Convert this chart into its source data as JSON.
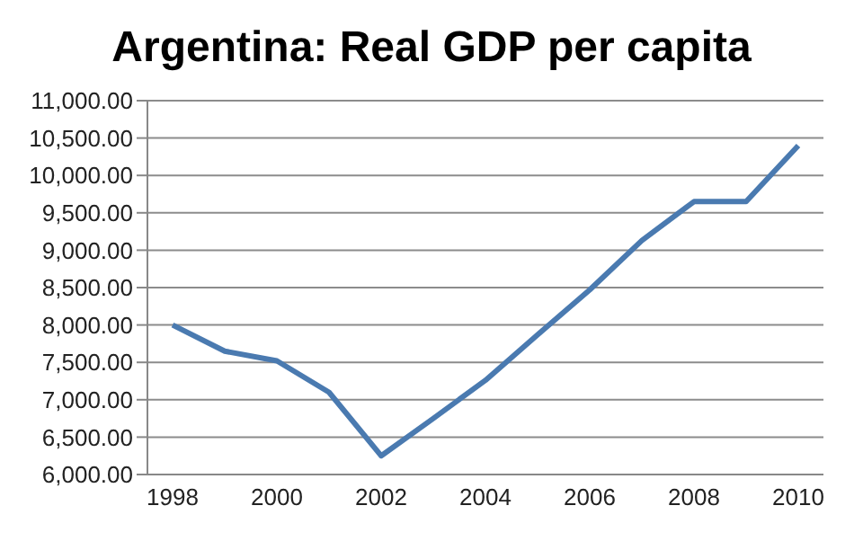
{
  "chart_data": {
    "type": "line",
    "title": "Argentina: Real GDP per capita",
    "categories": [
      "1998",
      null,
      "2000",
      null,
      "2002",
      null,
      "2004",
      null,
      "2006",
      null,
      "2008",
      null,
      "2010"
    ],
    "series": [
      {
        "color": "#4a7ab0",
        "values": [
          8000,
          7650,
          7520,
          7100,
          6250,
          6750,
          7260,
          7870,
          8470,
          9130,
          9650,
          9650,
          10400
        ]
      }
    ],
    "ylim": [
      6000,
      11000
    ],
    "yticks": [
      {
        "value": 6000,
        "label": "6,000.00"
      },
      {
        "value": 6500,
        "label": "6,500.00"
      },
      {
        "value": 7000,
        "label": "7,000.00"
      },
      {
        "value": 7500,
        "label": "7,500.00"
      },
      {
        "value": 8000,
        "label": "8,000.00"
      },
      {
        "value": 8500,
        "label": "8,500.00"
      },
      {
        "value": 9000,
        "label": "9,000.00"
      },
      {
        "value": 9500,
        "label": "9,500.00"
      },
      {
        "value": 10000,
        "label": "10,000.00"
      },
      {
        "value": 10500,
        "label": "10,500.00"
      },
      {
        "value": 11000,
        "label": "11,000.00"
      }
    ],
    "grid": "y",
    "legend": false,
    "marker": "none",
    "line_style": "solid"
  }
}
